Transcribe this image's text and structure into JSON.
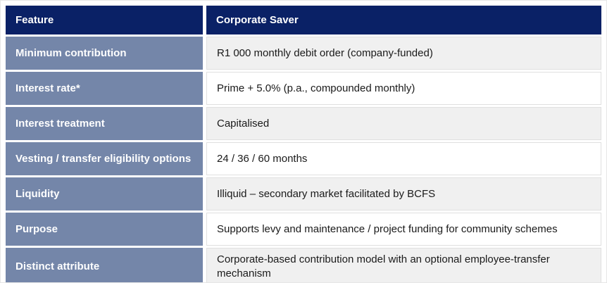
{
  "colors": {
    "header_bg": "#0a2166",
    "header_text": "#ffffff",
    "feature_column_bg": "#7486a9",
    "feature_column_text": "#ffffff",
    "value_row_alt_bg": "#f0f0f0",
    "value_row_bg": "#ffffff",
    "value_text": "#1a1a1a",
    "cell_border": "#e0e0e0"
  },
  "table": {
    "header": {
      "feature": "Feature",
      "product": "Corporate Saver"
    },
    "rows": [
      {
        "feature": "Minimum contribution",
        "value": "R1 000 monthly debit order (company-funded)"
      },
      {
        "feature": "Interest rate*",
        "value": "Prime + 5.0% (p.a., compounded monthly)"
      },
      {
        "feature": "Interest treatment",
        "value": "Capitalised"
      },
      {
        "feature": "Vesting / transfer eligibility options",
        "value": "24 / 36 / 60 months"
      },
      {
        "feature": "Liquidity",
        "value": "Illiquid – secondary market facilitated by BCFS"
      },
      {
        "feature": "Purpose",
        "value": "Supports levy and maintenance / project funding for community schemes"
      },
      {
        "feature": "Distinct attribute",
        "value": "Corporate-based contribution model with an optional employee-transfer mechanism"
      }
    ]
  }
}
